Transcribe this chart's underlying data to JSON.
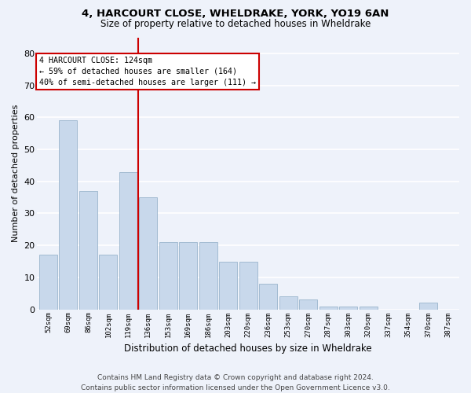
{
  "title1": "4, HARCOURT CLOSE, WHELDRAKE, YORK, YO19 6AN",
  "title2": "Size of property relative to detached houses in Wheldrake",
  "xlabel": "Distribution of detached houses by size in Wheldrake",
  "ylabel": "Number of detached properties",
  "categories": [
    "52sqm",
    "69sqm",
    "86sqm",
    "102sqm",
    "119sqm",
    "136sqm",
    "153sqm",
    "169sqm",
    "186sqm",
    "203sqm",
    "220sqm",
    "236sqm",
    "253sqm",
    "270sqm",
    "287sqm",
    "303sqm",
    "320sqm",
    "337sqm",
    "354sqm",
    "370sqm",
    "387sqm"
  ],
  "values": [
    17,
    59,
    37,
    17,
    43,
    35,
    21,
    21,
    21,
    15,
    15,
    8,
    4,
    3,
    1,
    1,
    1,
    0,
    0,
    2,
    0
  ],
  "bar_color": "#c8d8eb",
  "bar_edge_color": "#9ab5cc",
  "vline_x": 4.5,
  "vline_color": "#cc0000",
  "annotation_box_text": "4 HARCOURT CLOSE: 124sqm\n← 59% of detached houses are smaller (164)\n40% of semi-detached houses are larger (111) →",
  "annotation_box_color": "#cc0000",
  "ylim": [
    0,
    85
  ],
  "yticks": [
    0,
    10,
    20,
    30,
    40,
    50,
    60,
    70,
    80
  ],
  "footer": "Contains HM Land Registry data © Crown copyright and database right 2024.\nContains public sector information licensed under the Open Government Licence v3.0.",
  "bg_color": "#eef2fa",
  "grid_color": "#ffffff"
}
